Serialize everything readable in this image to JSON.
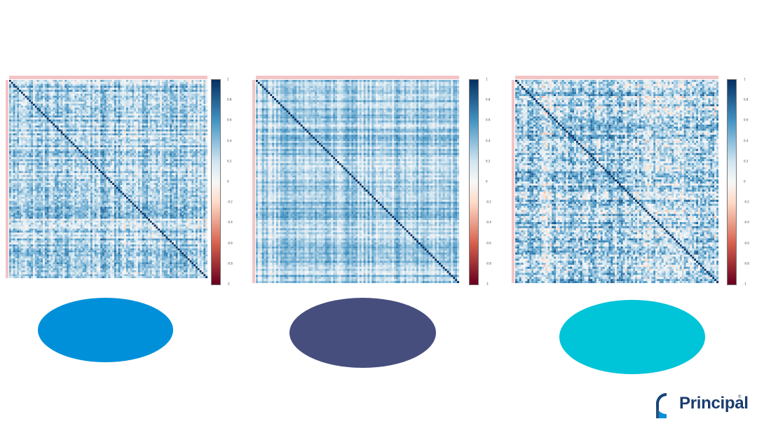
{
  "chart_data": [
    {
      "type": "heatmap",
      "title": "",
      "colorbar": {
        "min": -1,
        "max": 1,
        "ticks": [
          "1",
          "0.8",
          "0.6",
          "0.4",
          "0.2",
          "0",
          "-0.2",
          "-0.4",
          "-0.6",
          "-0.8",
          "-1"
        ]
      },
      "diagonal_value": 1,
      "typical_offdiag_range": [
        0.1,
        0.5
      ],
      "colors": {
        "low": "#67001f",
        "mid": "#f7f7f7",
        "high": "#053061"
      }
    },
    {
      "type": "heatmap",
      "title": "",
      "colorbar": {
        "min": -1,
        "max": 1,
        "ticks": [
          "1",
          "0.8",
          "0.6",
          "0.4",
          "0.2",
          "0",
          "-0.2",
          "-0.4",
          "-0.6",
          "-0.8",
          "-1"
        ]
      },
      "diagonal_value": 1,
      "typical_offdiag_range": [
        0.2,
        0.4
      ],
      "colors": {
        "low": "#67001f",
        "mid": "#f7f7f7",
        "high": "#053061"
      }
    },
    {
      "type": "heatmap",
      "title": "",
      "colorbar": {
        "min": -1,
        "max": 1,
        "ticks": [
          "1",
          "0.8",
          "0.6",
          "0.4",
          "0.2",
          "0",
          "-0.2",
          "-0.4",
          "-0.6",
          "-0.8",
          "-1"
        ]
      },
      "diagonal_value": 1,
      "typical_offdiag_range": [
        0.0,
        0.6
      ],
      "colors": {
        "low": "#67001f",
        "mid": "#f7f7f7",
        "high": "#053061"
      }
    }
  ],
  "ovals": [
    {
      "color": "#0090da"
    },
    {
      "color": "#464e7e"
    },
    {
      "color": "#00c4d8"
    }
  ],
  "logo": {
    "text": "Principal",
    "reg": "®",
    "mark_color": "#0091da"
  }
}
